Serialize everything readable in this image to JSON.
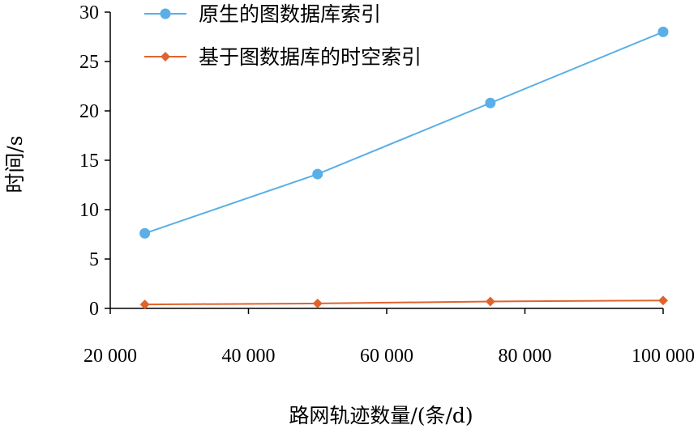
{
  "chart_data": {
    "type": "line",
    "title": "",
    "xlabel": "路网轨迹数量/(条/d)",
    "ylabel": "时间/s",
    "xlim": [
      20000,
      100000
    ],
    "ylim": [
      0,
      30
    ],
    "x_ticks": [
      20000,
      40000,
      60000,
      80000,
      100000
    ],
    "x_tick_labels": [
      "20 000",
      "40 000",
      "60 000",
      "80 000",
      "100 000"
    ],
    "y_ticks": [
      0,
      5,
      10,
      15,
      20,
      25,
      30
    ],
    "y_tick_labels": [
      "0",
      "5",
      "10",
      "15",
      "20",
      "25",
      "30"
    ],
    "grid": false,
    "legend_position": "top",
    "series": [
      {
        "name": "原生的图数据库索引",
        "color": "#5aafe6",
        "marker": "circle",
        "x": [
          25000,
          50000,
          75000,
          100000
        ],
        "y": [
          7.6,
          13.6,
          20.8,
          28.0
        ]
      },
      {
        "name": "基于图数据库的时空索引",
        "color": "#e0632e",
        "marker": "diamond",
        "x": [
          25000,
          50000,
          75000,
          100000
        ],
        "y": [
          0.4,
          0.5,
          0.7,
          0.8
        ]
      }
    ]
  }
}
